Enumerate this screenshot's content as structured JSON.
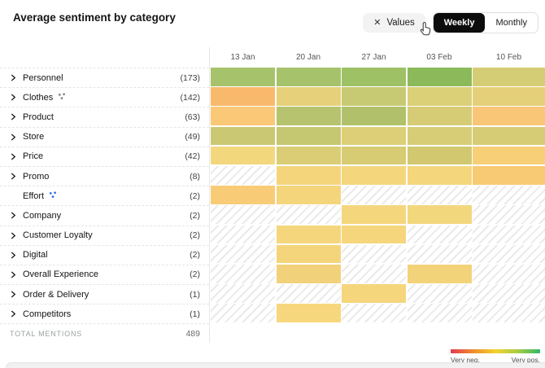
{
  "header": {
    "title": "Average sentiment by category",
    "values_chip": {
      "close_icon": "✕",
      "label": "Values"
    },
    "view_toggle": {
      "options": [
        "Weekly",
        "Monthly"
      ],
      "selected": "Weekly"
    }
  },
  "categories": [
    {
      "label": "Personnel",
      "count": "(173)",
      "expandable": true,
      "icon": null
    },
    {
      "label": "Clothes",
      "count": "(142)",
      "expandable": true,
      "icon": "cluster-dots",
      "icon_color": "#7d838c"
    },
    {
      "label": "Product",
      "count": "(63)",
      "expandable": true,
      "icon": null
    },
    {
      "label": "Store",
      "count": "(49)",
      "expandable": true,
      "icon": null
    },
    {
      "label": "Price",
      "count": "(42)",
      "expandable": true,
      "icon": null
    },
    {
      "label": "Promo",
      "count": "(8)",
      "expandable": true,
      "icon": null
    },
    {
      "label": "Effort",
      "count": "(2)",
      "expandable": false,
      "icon": "cluster-dots",
      "icon_color": "#2f6be4"
    },
    {
      "label": "Company",
      "count": "(2)",
      "expandable": true,
      "icon": null
    },
    {
      "label": "Customer Loyalty",
      "count": "(2)",
      "expandable": true,
      "icon": null
    },
    {
      "label": "Digital",
      "count": "(2)",
      "expandable": true,
      "icon": null
    },
    {
      "label": "Overall Experience",
      "count": "(2)",
      "expandable": true,
      "icon": null
    },
    {
      "label": "Order & Delivery",
      "count": "(1)",
      "expandable": true,
      "icon": null
    },
    {
      "label": "Competitors",
      "count": "(1)",
      "expandable": true,
      "icon": null
    }
  ],
  "totals": {
    "label": "TOTAL MENTIONS",
    "value": "489"
  },
  "legend": {
    "neg_label": "Very neg.",
    "pos_label": "Very pos.",
    "gradient": [
      "#e23a50",
      "#ef8c2e",
      "#f3d22e",
      "#a9cc43",
      "#30b968"
    ]
  },
  "chart_data": {
    "type": "heatmap",
    "title": "Average sentiment by category",
    "x_labels": [
      "13 Jan",
      "20 Jan",
      "27 Jan",
      "03 Feb",
      "10 Feb"
    ],
    "y_labels": [
      "Personnel",
      "Clothes",
      "Product",
      "Store",
      "Price",
      "Promo",
      "Effort",
      "Company",
      "Customer Loyalty",
      "Digital",
      "Overall Experience",
      "Order & Delivery",
      "Competitors"
    ],
    "mention_counts": [
      173,
      142,
      63,
      49,
      42,
      8,
      2,
      2,
      2,
      2,
      2,
      1,
      1
    ],
    "total_mentions": 489,
    "color_scale": "red = very negative, yellow = neutral, green = very positive; null = no data (hatched)",
    "cells": [
      [
        "#a6c36c",
        "#a6c36c",
        "#9ec166",
        "#8cba5b",
        "#d5cd75"
      ],
      [
        "#f9b96c",
        "#e6d17a",
        "#c8c973",
        "#dbcf78",
        "#e4d078"
      ],
      [
        "#fac877",
        "#b7c36e",
        "#b1c16b",
        "#d6cc75",
        "#f9c577"
      ],
      [
        "#cbc873",
        "#c6c771",
        "#dccf78",
        "#d7cd76",
        "#d6cc75"
      ],
      [
        "#f3d77d",
        "#dacd75",
        "#d7cb73",
        "#d1c86f",
        "#f6cf77"
      ],
      [
        null,
        "#f5d57c",
        "#f4d67d",
        "#f4d67d",
        "#f8ca73"
      ],
      [
        "#f8cc76",
        "#f5d57c",
        null,
        null,
        null
      ],
      [
        null,
        null,
        "#f4d77d",
        "#f3d77d",
        null
      ],
      [
        null,
        "#f5d67c",
        "#f5d67c",
        null,
        null
      ],
      [
        null,
        "#f5d57c",
        null,
        null,
        null
      ],
      [
        null,
        "#f1d179",
        null,
        "#f3d37a",
        null
      ],
      [
        null,
        null,
        "#f5d67c",
        null,
        null
      ],
      [
        null,
        "#f7d77d",
        null,
        null,
        null
      ]
    ]
  }
}
